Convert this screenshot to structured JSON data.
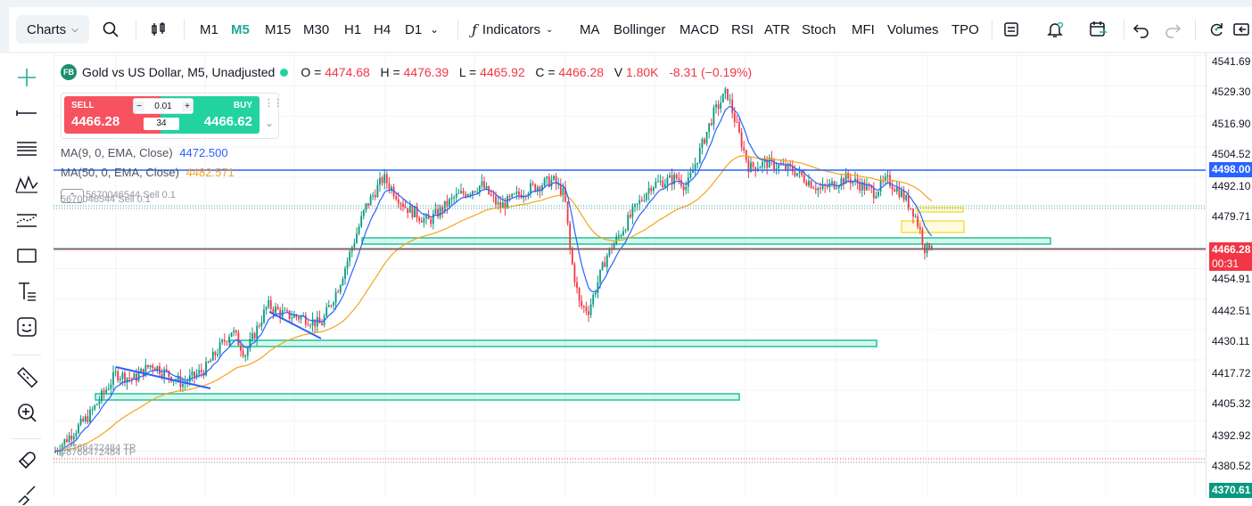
{
  "toolbar": {
    "charts_label": "Charts",
    "timeframes": [
      "M1",
      "M5",
      "M15",
      "M30",
      "H1",
      "H4",
      "D1"
    ],
    "active_timeframe": "M5",
    "indicators_label": "Indicators",
    "studies": [
      "MA",
      "Bollinger",
      "MACD",
      "RSI",
      "ATR",
      "Stoch",
      "MFI",
      "Volumes",
      "TPO"
    ]
  },
  "legend": {
    "badge": "FB",
    "symbol_title": "Gold vs US Dollar, M5, Unadjusted",
    "o_label": "O =",
    "o": "4474.68",
    "h_label": "H =",
    "h": "4476.39",
    "l_label": "L =",
    "l": "4465.92",
    "c_label": "C =",
    "c": "4466.28",
    "v_label": "V",
    "v": "1.80K",
    "change": "-8.31 (−0.19%)"
  },
  "trade_panel": {
    "sell_label": "SELL",
    "sell_price": "4466.28",
    "buy_label": "BUY",
    "buy_price": "4466.62",
    "lot": "0.01",
    "spread": "34",
    "minus": "−",
    "plus": "+"
  },
  "indicators": {
    "ma9_label": "MA(9, 0, EMA, Close)",
    "ma9_value": "4472.500",
    "ma50_label": "MA(50, 0, EMA, Close)",
    "ma50_value": "4482.571"
  },
  "order_lines": {
    "sell_label": "5670046544 Sell 0.1",
    "tp_label": "#8766472484 TP"
  },
  "price_axis": {
    "ticks": [
      "4541.69",
      "4529.30",
      "4516.90",
      "4504.52",
      "4492.10",
      "4479.71",
      "4454.91",
      "4442.51",
      "4430.11",
      "4417.72",
      "4405.32",
      "4392.92",
      "4380.52"
    ],
    "blue_line_price": "4498.00",
    "current_price": "4466.28",
    "countdown": "00:31",
    "bottom_price": "4370.61"
  },
  "colors": {
    "accent": "#22ab94",
    "down": "#f23645",
    "up": "#089981",
    "blue_line": "#2962ff",
    "ma50": "#f7a21b"
  }
}
